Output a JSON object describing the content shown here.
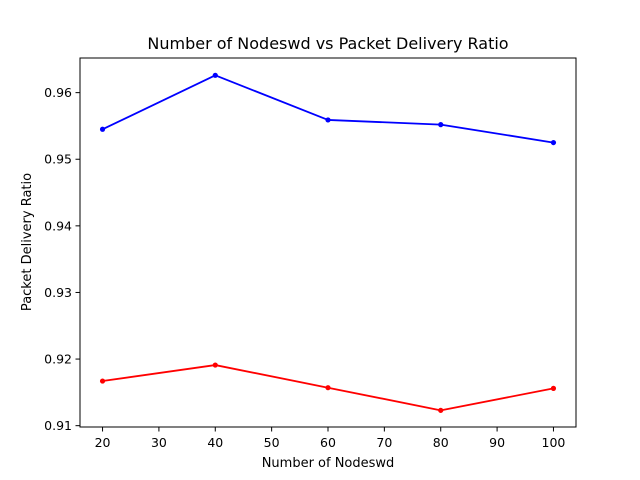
{
  "chart_data": {
    "type": "line",
    "title": "Number of Nodeswd vs Packet Delivery Ratio",
    "xlabel": "Number of Nodeswd",
    "ylabel": "Packet Delivery Ratio",
    "x": [
      20,
      40,
      60,
      80,
      100
    ],
    "xlim": [
      16,
      104
    ],
    "ylim": [
      0.9098,
      0.9652
    ],
    "xticks": [
      20,
      30,
      40,
      50,
      60,
      70,
      80,
      90,
      100
    ],
    "yticks": [
      0.91,
      0.92,
      0.93,
      0.94,
      0.95,
      0.96
    ],
    "ytick_labels": [
      "0.91",
      "0.92",
      "0.93",
      "0.94",
      "0.95",
      "0.96"
    ],
    "grid": false,
    "legend": "none",
    "series": [
      {
        "color": "#0000ff",
        "marker": "circle",
        "values": [
          0.9545,
          0.9626,
          0.9559,
          0.9552,
          0.9525
        ]
      },
      {
        "color": "#ff0000",
        "marker": "circle",
        "values": [
          0.9167,
          0.9191,
          0.9157,
          0.9123,
          0.9156
        ]
      }
    ]
  }
}
